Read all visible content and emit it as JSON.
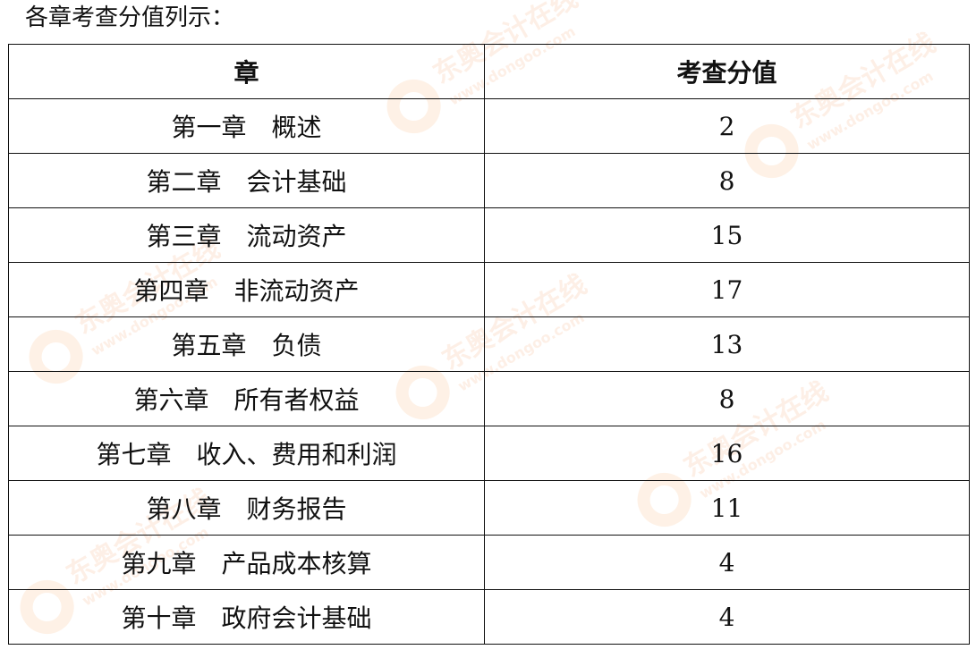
{
  "intro": "各章考查分值列示：",
  "watermark": {
    "brand": "东奥会计在线",
    "url": "www.dongoo.com",
    "color": "#f08a3c"
  },
  "table": {
    "headers": [
      "章",
      "考查分值"
    ],
    "rows": [
      {
        "chapter": "第一章　概述",
        "score": "2"
      },
      {
        "chapter": "第二章　会计基础",
        "score": "8"
      },
      {
        "chapter": "第三章　流动资产",
        "score": "15"
      },
      {
        "chapter": "第四章　非流动资产",
        "score": "17"
      },
      {
        "chapter": "第五章　负债",
        "score": "13"
      },
      {
        "chapter": "第六章　所有者权益",
        "score": "8"
      },
      {
        "chapter": "第七章　收入、费用和利润",
        "score": "16"
      },
      {
        "chapter": "第八章　财务报告",
        "score": "11"
      },
      {
        "chapter": "第九章　产品成本核算",
        "score": "4"
      },
      {
        "chapter": "第十章　政府会计基础",
        "score": "4"
      }
    ]
  }
}
